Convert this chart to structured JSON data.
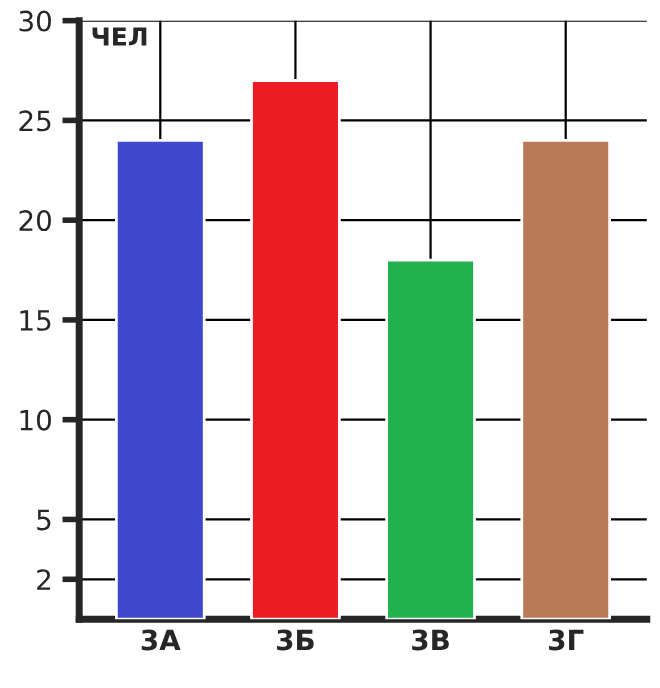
{
  "chart_data": {
    "type": "bar",
    "ylabel": "ЧЕЛ",
    "categories": [
      "3А",
      "3Б",
      "3В",
      "3Г"
    ],
    "values": [
      24,
      27,
      18,
      24
    ],
    "colors": [
      "#3f48cc",
      "#ed1c24",
      "#22b14c",
      "#b97a57"
    ],
    "ylim": [
      0,
      30
    ],
    "yticks": [
      2,
      5,
      10,
      15,
      20,
      25,
      30
    ],
    "grid": true,
    "legend": false
  }
}
